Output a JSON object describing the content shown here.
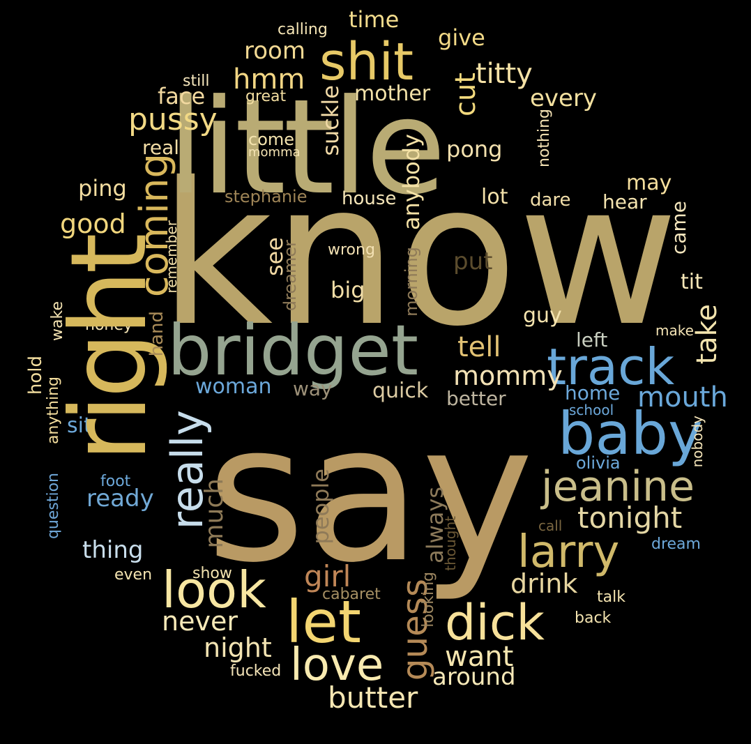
{
  "words": {
    "know": {
      "text": "know",
      "color": "#B9A46A"
    },
    "say": {
      "text": "say",
      "color": "#B99A64"
    },
    "little": {
      "text": "little",
      "color": "#B9AB74"
    },
    "right": {
      "text": "right",
      "color": "#D6B85C"
    },
    "bridget": {
      "text": "bridget",
      "color": "#95A490"
    },
    "track": {
      "text": "track",
      "color": "#69A7D8"
    },
    "baby": {
      "text": "baby",
      "color": "#69A7D8"
    },
    "shit": {
      "text": "shit",
      "color": "#E7C967"
    },
    "jeanine": {
      "text": "jeanine",
      "color": "#C9BE8A"
    },
    "larry": {
      "text": "larry",
      "color": "#D0B96A"
    },
    "look": {
      "text": "look",
      "color": "#F7E6A2"
    },
    "let": {
      "text": "let",
      "color": "#F3D571"
    },
    "dick": {
      "text": "dick",
      "color": "#F7E19A"
    },
    "love": {
      "text": "love",
      "color": "#F8EAB0"
    },
    "really": {
      "text": "really",
      "color": "#C7DDEB"
    },
    "coming": {
      "text": "coming",
      "color": "#D9B85C"
    },
    "tonight": {
      "text": "tonight",
      "color": "#E4D7A5"
    },
    "butter": {
      "text": "butter",
      "color": "#F6E7B3"
    },
    "guess": {
      "text": "guess",
      "color": "#B58A57"
    },
    "want": {
      "text": "want",
      "color": "#F6E6B0"
    },
    "never": {
      "text": "never",
      "color": "#F7E9B8"
    },
    "night": {
      "text": "night",
      "color": "#F3E4B3"
    },
    "girl": {
      "text": "girl",
      "color": "#C08657"
    },
    "mouth": {
      "text": "mouth",
      "color": "#6AA8DA"
    },
    "mommy": {
      "text": "mommy",
      "color": "#F3E2B6"
    },
    "tell": {
      "text": "tell",
      "color": "#E2C274"
    },
    "drink": {
      "text": "drink",
      "color": "#E7D6A0"
    },
    "around": {
      "text": "around",
      "color": "#F7E9B8"
    },
    "pussy": {
      "text": "pussy",
      "color": "#F2D985"
    },
    "titty": {
      "text": "titty",
      "color": "#F6E2A6"
    },
    "hmm": {
      "text": "hmm",
      "color": "#F2D684"
    },
    "cut": {
      "text": "cut",
      "color": "#F3DA7E"
    },
    "room": {
      "text": "room",
      "color": "#F1D893"
    },
    "time": {
      "text": "time",
      "color": "#F3DC8D"
    },
    "give": {
      "text": "give",
      "color": "#F3DA87"
    },
    "mother": {
      "text": "mother",
      "color": "#F3E2A9"
    },
    "every": {
      "text": "every",
      "color": "#F4E1A0"
    },
    "face": {
      "text": "face",
      "color": "#F2D9A0"
    },
    "pong": {
      "text": "pong",
      "color": "#F3E1AF"
    },
    "ping": {
      "text": "ping",
      "color": "#F3DDA0"
    },
    "good": {
      "text": "good",
      "color": "#F1D67D"
    },
    "ready": {
      "text": "ready",
      "color": "#71A9D6"
    },
    "thing": {
      "text": "thing",
      "color": "#C9DEEC"
    },
    "woman": {
      "text": "woman",
      "color": "#6CA8DA"
    },
    "take": {
      "text": "take",
      "color": "#F3E4AE"
    },
    "much": {
      "text": "much",
      "color": "#8E7A57"
    },
    "people": {
      "text": "people",
      "color": "#8F7A58"
    },
    "always": {
      "text": "always",
      "color": "#8C7A5A"
    },
    "suckle": {
      "text": "suckle",
      "color": "#F0D9A6"
    },
    "anybody": {
      "text": "anybody",
      "color": "#F4E1A6"
    },
    "put": {
      "text": "put",
      "color": "#5B4C2D"
    },
    "see": {
      "text": "see",
      "color": "#F1D8A3"
    },
    "big": {
      "text": "big",
      "color": "#F3DFA8"
    },
    "guy": {
      "text": "guy",
      "color": "#F5E4AF"
    },
    "tit": {
      "text": "tit",
      "color": "#F6E7B8"
    },
    "left": {
      "text": "left",
      "color": "#C9CFC0"
    },
    "quick": {
      "text": "quick",
      "color": "#DCCBA3"
    },
    "better": {
      "text": "better",
      "color": "#BEB5A0"
    },
    "home": {
      "text": "home",
      "color": "#6DA9DB"
    },
    "sit": {
      "text": "sit",
      "color": "#6DA9DB"
    },
    "way": {
      "text": "way",
      "color": "#9C9078"
    },
    "came": {
      "text": "came",
      "color": "#F4E6BD"
    },
    "may": {
      "text": "may",
      "color": "#F5DF9E"
    },
    "hear": {
      "text": "hear",
      "color": "#F4E4B0"
    },
    "lot": {
      "text": "lot",
      "color": "#F3E1AA"
    },
    "dare": {
      "text": "dare",
      "color": "#F2DFAA"
    },
    "house": {
      "text": "house",
      "color": "#F4E5B8"
    },
    "stephanie": {
      "text": "stephanie",
      "color": "#9E8456"
    },
    "real": {
      "text": "real",
      "color": "#F3DDA6"
    },
    "come": {
      "text": "come",
      "color": "#F4E3AE"
    },
    "momma": {
      "text": "momma",
      "color": "#F4E3B3"
    },
    "great": {
      "text": "great",
      "color": "#F3DEA1"
    },
    "still": {
      "text": "still",
      "color": "#F6E7BD"
    },
    "calling": {
      "text": "calling",
      "color": "#F6E6B6"
    },
    "nothing": {
      "text": "nothing",
      "color": "#F4E2B4"
    },
    "wrong": {
      "text": "wrong",
      "color": "#F4E2B4"
    },
    "morning": {
      "text": "morning",
      "color": "#8E7A58"
    },
    "dreamer": {
      "text": "dreamer",
      "color": "#8E7A58"
    },
    "remember": {
      "text": "remember",
      "color": "#F2DFA9"
    },
    "hand": {
      "text": "hand",
      "color": "#A98B58"
    },
    "honey": {
      "text": "honey",
      "color": "#F4E4B5"
    },
    "wake": {
      "text": "wake",
      "color": "#F4E3B2"
    },
    "hold": {
      "text": "hold",
      "color": "#F3DE9F"
    },
    "anything": {
      "text": "anything",
      "color": "#F3DD9D"
    },
    "question": {
      "text": "question",
      "color": "#6FA7D8"
    },
    "foot": {
      "text": "foot",
      "color": "#6DA9DB"
    },
    "even": {
      "text": "even",
      "color": "#F5E5B2"
    },
    "show": {
      "text": "show",
      "color": "#F4E4B0"
    },
    "cabaret": {
      "text": "cabaret",
      "color": "#A58F63"
    },
    "looking": {
      "text": "looking",
      "color": "#9C8660"
    },
    "thought": {
      "text": "thought",
      "color": "#6B5835"
    },
    "fucked": {
      "text": "fucked",
      "color": "#F4E4B8"
    },
    "talk": {
      "text": "talk",
      "color": "#F4E4B0"
    },
    "back": {
      "text": "back",
      "color": "#F4E4B0"
    },
    "call": {
      "text": "call",
      "color": "#7A6640"
    },
    "dream": {
      "text": "dream",
      "color": "#6DA9DB"
    },
    "olivia": {
      "text": "olivia",
      "color": "#6DA9DB"
    },
    "nobody": {
      "text": "nobody",
      "color": "#F4E4B8"
    },
    "school": {
      "text": "school",
      "color": "#6DA9DB"
    },
    "make": {
      "text": "make",
      "color": "#F4E4B5"
    }
  }
}
